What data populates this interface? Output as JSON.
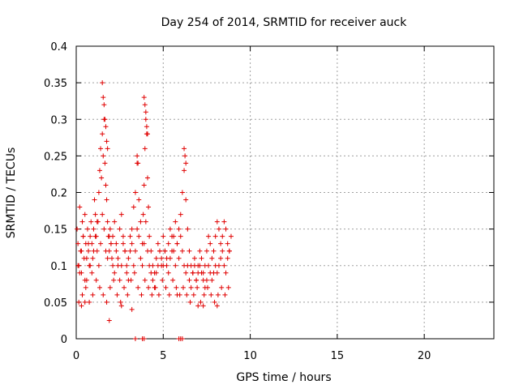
{
  "chart_data": {
    "type": "scatter",
    "title": "Day 254 of 2014, SRMTID for receiver auck",
    "xlabel": "GPS time / hours",
    "ylabel": "SRMTID / TECUs",
    "xlim": [
      0,
      24
    ],
    "ylim": [
      0,
      0.4
    ],
    "xticks": [
      0,
      5,
      10,
      15,
      20
    ],
    "xtick_labels": [
      "0",
      "5",
      "10",
      "15",
      "20"
    ],
    "yticks": [
      0,
      0.05,
      0.1,
      0.15,
      0.2,
      0.25,
      0.3,
      0.35,
      0.4
    ],
    "ytick_labels": [
      "0",
      "0.05",
      "0.1",
      "0.15",
      "0.2",
      "0.25",
      "0.3",
      "0.35",
      "0.4"
    ],
    "grid": true,
    "marker": "plus",
    "color": "#e00000",
    "series": [
      {
        "name": "SRMTID",
        "x": [
          0.05,
          0.1,
          0.15,
          0.2,
          0.25,
          0.3,
          0.35,
          0.4,
          0.45,
          0.5,
          0.55,
          0.6,
          0.65,
          0.7,
          0.75,
          0.8,
          0.85,
          0.9,
          0.95,
          1.0,
          1.05,
          1.1,
          1.15,
          1.2,
          1.25,
          1.3,
          1.35,
          1.4,
          1.45,
          1.5,
          1.55,
          1.6,
          1.65,
          1.7,
          1.75,
          1.8,
          1.85,
          1.9,
          1.95,
          2.0,
          2.05,
          2.1,
          2.2,
          2.3,
          2.4,
          2.5,
          2.6,
          2.7,
          2.8,
          2.9,
          3.0,
          3.1,
          3.2,
          3.3,
          3.4,
          3.5,
          3.6,
          3.7,
          3.8,
          3.85,
          3.9,
          3.95,
          4.0,
          4.05,
          4.1,
          4.15,
          4.2,
          4.3,
          4.4,
          4.5,
          4.6,
          4.7,
          4.8,
          4.9,
          5.0,
          5.1,
          5.2,
          5.3,
          5.4,
          5.5,
          5.6,
          5.7,
          5.8,
          5.9,
          6.0,
          6.1,
          6.2,
          6.3,
          6.4,
          6.5,
          6.6,
          6.7,
          6.8,
          6.9,
          7.0,
          7.1,
          7.2,
          7.3,
          7.4,
          7.5,
          7.6,
          7.7,
          7.8,
          7.9,
          8.0,
          8.1,
          8.2,
          8.3,
          8.4,
          8.5,
          8.6,
          8.7,
          8.8,
          8.9,
          0.1,
          0.2,
          0.3,
          0.4,
          0.5,
          0.6,
          0.7,
          0.8,
          0.9,
          1.0,
          1.1,
          1.2,
          1.3,
          1.4,
          1.5,
          1.6,
          1.7,
          1.8,
          1.9,
          2.0,
          2.1,
          2.2,
          2.3,
          2.4,
          2.5,
          2.6,
          2.7,
          2.8,
          2.9,
          3.0,
          3.1,
          3.2,
          3.3,
          3.4,
          3.5,
          3.6,
          3.7,
          3.8,
          3.9,
          4.0,
          4.1,
          4.2,
          4.3,
          4.4,
          4.5,
          4.6,
          4.7,
          4.8,
          4.9,
          5.0,
          5.1,
          5.2,
          5.3,
          5.4,
          5.5,
          5.6,
          5.7,
          5.8,
          5.9,
          6.0,
          6.1,
          6.2,
          6.3,
          6.4,
          6.5,
          6.6,
          6.7,
          6.8,
          6.9,
          7.0,
          7.1,
          7.2,
          7.3,
          7.4,
          7.5,
          7.6,
          7.7,
          7.8,
          7.9,
          8.0,
          8.1,
          8.2,
          8.3,
          8.4,
          8.5,
          8.6,
          8.7,
          8.8,
          0.15,
          0.35,
          0.55,
          0.75,
          0.95,
          1.15,
          1.35,
          1.55,
          1.75,
          1.95,
          2.15,
          2.35,
          2.55,
          2.75,
          2.95,
          3.15,
          3.35,
          3.55,
          3.75,
          3.95,
          4.15,
          4.35,
          4.55,
          4.75,
          4.95,
          5.15,
          5.35,
          5.55,
          5.75,
          5.95,
          6.15,
          6.35,
          6.55,
          6.75,
          6.95,
          7.15,
          7.35,
          7.55,
          7.75,
          7.95,
          8.15,
          8.35,
          8.55,
          8.75,
          1.5,
          1.55,
          1.6,
          1.65,
          1.7,
          1.75,
          1.8,
          3.9,
          3.95,
          4.0,
          4.05,
          4.1,
          3.5,
          3.55,
          6.2,
          6.25,
          6.3,
          0.3,
          0.5,
          1.9,
          2.6,
          3.2,
          5.8,
          7.0,
          7.3,
          8.1,
          3.4,
          3.8,
          3.9,
          5.9,
          6.0,
          6.1
        ],
        "y": [
          0.15,
          0.13,
          0.1,
          0.18,
          0.12,
          0.09,
          0.16,
          0.14,
          0.11,
          0.17,
          0.13,
          0.08,
          0.15,
          0.12,
          0.1,
          0.14,
          0.16,
          0.13,
          0.11,
          0.15,
          0.19,
          0.17,
          0.14,
          0.12,
          0.16,
          0.2,
          0.23,
          0.26,
          0.22,
          0.28,
          0.25,
          0.3,
          0.24,
          0.21,
          0.19,
          0.16,
          0.14,
          0.12,
          0.15,
          0.13,
          0.11,
          0.14,
          0.16,
          0.13,
          0.1,
          0.15,
          0.17,
          0.14,
          0.12,
          0.1,
          0.08,
          0.12,
          0.15,
          0.18,
          0.2,
          0.24,
          0.19,
          0.16,
          0.13,
          0.17,
          0.21,
          0.26,
          0.31,
          0.28,
          0.22,
          0.18,
          0.14,
          0.12,
          0.1,
          0.09,
          0.11,
          0.13,
          0.12,
          0.1,
          0.14,
          0.12,
          0.11,
          0.13,
          0.15,
          0.14,
          0.12,
          0.1,
          0.13,
          0.15,
          0.17,
          0.2,
          0.23,
          0.19,
          0.15,
          0.12,
          0.1,
          0.09,
          0.11,
          0.08,
          0.1,
          0.12,
          0.11,
          0.09,
          0.1,
          0.12,
          0.14,
          0.13,
          0.11,
          0.12,
          0.14,
          0.16,
          0.15,
          0.13,
          0.14,
          0.16,
          0.15,
          0.13,
          0.12,
          0.14,
          0.1,
          0.09,
          0.12,
          0.14,
          0.08,
          0.11,
          0.13,
          0.1,
          0.09,
          0.12,
          0.14,
          0.16,
          0.1,
          0.13,
          0.17,
          0.15,
          0.12,
          0.11,
          0.14,
          0.13,
          0.1,
          0.09,
          0.12,
          0.11,
          0.08,
          0.1,
          0.13,
          0.12,
          0.09,
          0.11,
          0.14,
          0.13,
          0.1,
          0.12,
          0.15,
          0.14,
          0.11,
          0.1,
          0.13,
          0.16,
          0.12,
          0.1,
          0.09,
          0.08,
          0.07,
          0.09,
          0.1,
          0.12,
          0.11,
          0.1,
          0.12,
          0.1,
          0.09,
          0.11,
          0.12,
          0.14,
          0.16,
          0.13,
          0.11,
          0.14,
          0.12,
          0.1,
          0.09,
          0.1,
          0.08,
          0.07,
          0.09,
          0.1,
          0.08,
          0.09,
          0.1,
          0.09,
          0.08,
          0.07,
          0.08,
          0.1,
          0.09,
          0.08,
          0.09,
          0.1,
          0.09,
          0.1,
          0.11,
          0.12,
          0.1,
          0.09,
          0.11,
          0.12,
          0.05,
          0.06,
          0.07,
          0.05,
          0.06,
          0.08,
          0.07,
          0.06,
          0.05,
          0.07,
          0.08,
          0.06,
          0.05,
          0.07,
          0.06,
          0.08,
          0.09,
          0.07,
          0.06,
          0.08,
          0.07,
          0.06,
          0.07,
          0.06,
          0.08,
          0.07,
          0.06,
          0.08,
          0.07,
          0.06,
          0.07,
          0.06,
          0.05,
          0.06,
          0.07,
          0.05,
          0.06,
          0.07,
          0.06,
          0.05,
          0.06,
          0.07,
          0.06,
          0.07,
          0.35,
          0.33,
          0.32,
          0.3,
          0.29,
          0.27,
          0.26,
          0.33,
          0.32,
          0.3,
          0.29,
          0.28,
          0.25,
          0.24,
          0.26,
          0.25,
          0.24,
          0.045,
          0.05,
          0.025,
          0.045,
          0.04,
          0.06,
          0.045,
          0.045,
          0.045,
          0,
          0,
          0,
          0,
          0,
          0
        ]
      }
    ]
  }
}
